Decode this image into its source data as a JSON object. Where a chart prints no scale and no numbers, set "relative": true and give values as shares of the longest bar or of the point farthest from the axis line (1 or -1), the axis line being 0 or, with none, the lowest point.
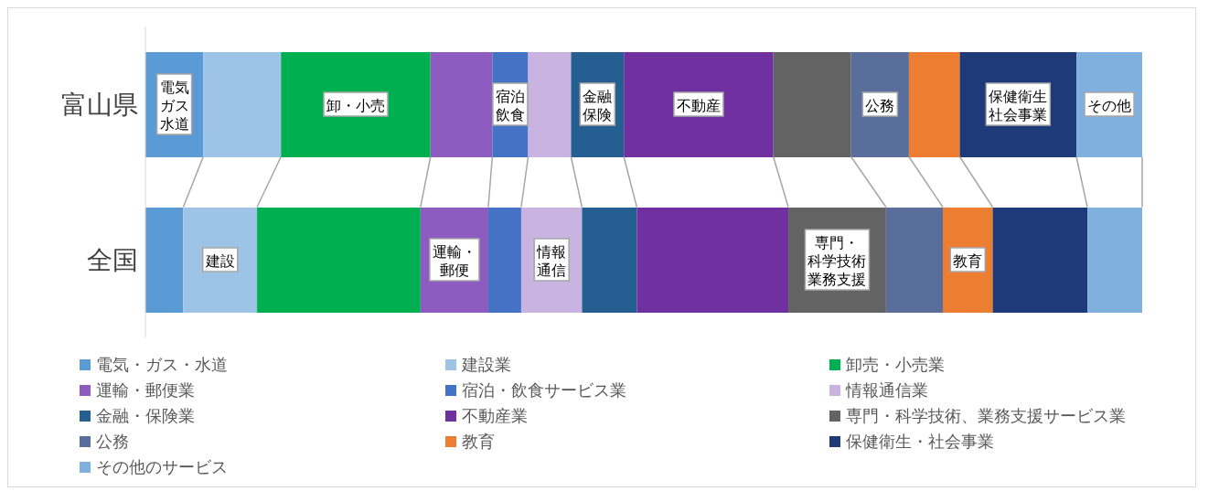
{
  "chart_data": {
    "type": "bar",
    "orientation": "horizontal",
    "stacked": true,
    "relative": true,
    "legend": "bottom",
    "categories": [
      "富山県",
      "全国"
    ],
    "series": [
      {
        "name": "電気・ガス・水道",
        "color": "#5b9bd5",
        "values": [
          0.058,
          0.038
        ]
      },
      {
        "name": "建設業",
        "color": "#9dc3e6",
        "values": [
          0.078,
          0.074
        ]
      },
      {
        "name": "卸売・小売業",
        "color": "#00b050",
        "values": [
          0.15,
          0.164
        ]
      },
      {
        "name": "運輸・郵便業",
        "color": "#8e5cc0",
        "values": [
          0.062,
          0.068
        ]
      },
      {
        "name": "宿泊・飲食サービス業",
        "color": "#4472c4",
        "values": [
          0.036,
          0.033
        ]
      },
      {
        "name": "情報通信業",
        "color": "#c9b3e0",
        "values": [
          0.043,
          0.061
        ]
      },
      {
        "name": "金融・保険業",
        "color": "#255e91",
        "values": [
          0.053,
          0.055
        ]
      },
      {
        "name": "不動産業",
        "color": "#7030a0",
        "values": [
          0.15,
          0.152
        ]
      },
      {
        "name": "専門・科学技術、業務支援サービス業",
        "color": "#636363",
        "values": [
          0.078,
          0.098
        ]
      },
      {
        "name": "公務",
        "color": "#5a6e9c",
        "values": [
          0.058,
          0.057
        ]
      },
      {
        "name": "教育",
        "color": "#ed7d31",
        "values": [
          0.051,
          0.05
        ]
      },
      {
        "name": "保健衛生・社会事業",
        "color": "#1f3a78",
        "values": [
          0.117,
          0.095
        ]
      },
      {
        "name": "その他のサービス",
        "color": "#7fb0de",
        "values": [
          0.066,
          0.055
        ]
      }
    ],
    "annotations": [
      "電気ガス水道",
      "建設",
      "卸・小売",
      "運輸・郵便",
      "宿泊飲食",
      "情報通信",
      "金融保険",
      "不動産",
      "専門・科学技術業務支援",
      "公務",
      "教育",
      "保健衛生社会事業",
      "その他"
    ]
  }
}
